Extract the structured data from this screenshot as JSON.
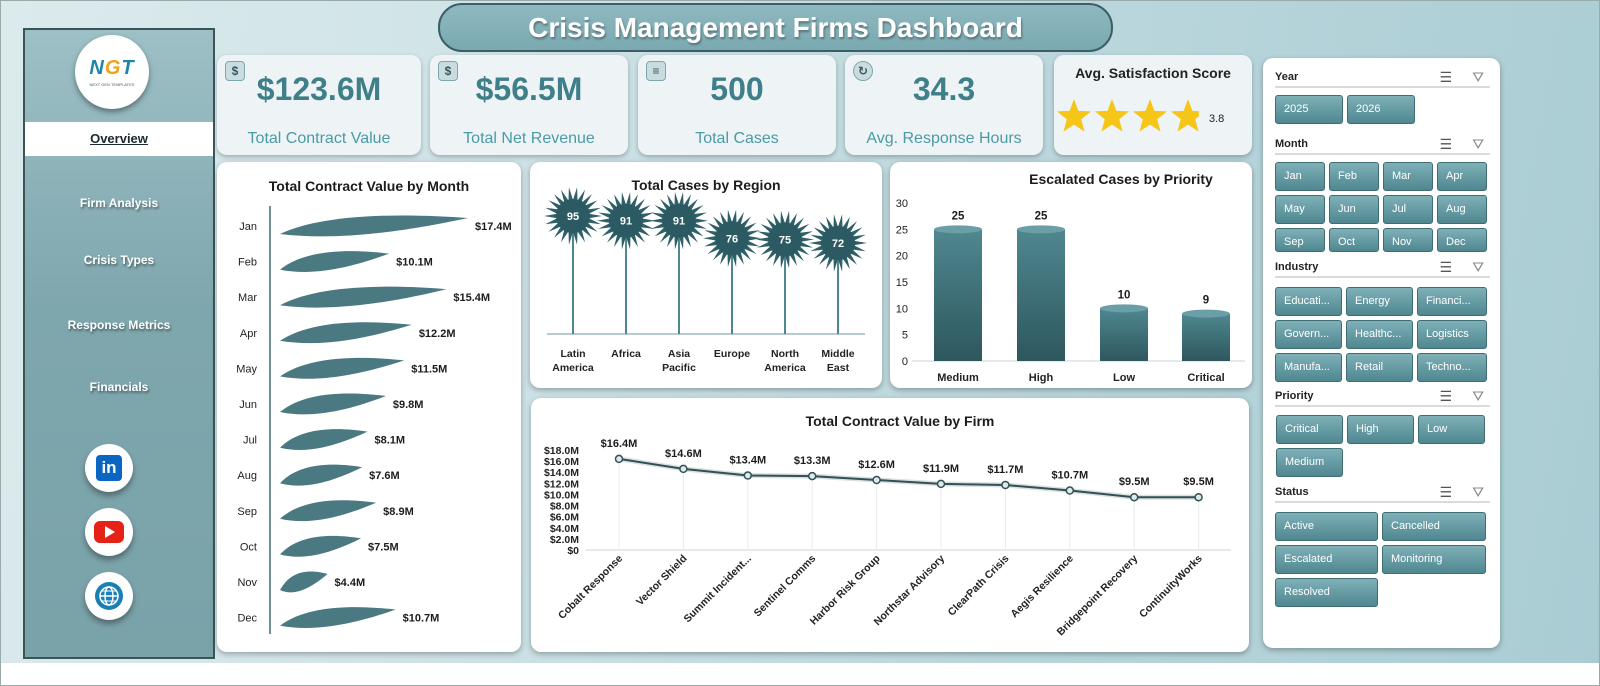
{
  "title": "Crisis Management Firms Dashboard",
  "logo": {
    "text_n": "N",
    "text_g": "G",
    "text_t": "T",
    "subtitle": "NEXT GEN TEMPLATES"
  },
  "sidebar": {
    "items": [
      {
        "label": "Overview",
        "active": true
      },
      {
        "label": "Firm Analysis"
      },
      {
        "label": "Crisis Types"
      },
      {
        "label": "Response Metrics"
      },
      {
        "label": "Financials"
      }
    ],
    "social": {
      "linkedin": "in"
    }
  },
  "kpis": [
    {
      "value": "$123.6M",
      "label": "Total Contract Value",
      "icon": "money-bag-icon"
    },
    {
      "value": "$56.5M",
      "label": "Total Net Revenue",
      "icon": "money-bag-icon"
    },
    {
      "value": "500",
      "label": "Total Cases",
      "icon": "report-icon"
    },
    {
      "value": "34.3",
      "label": "Avg. Response Hours",
      "icon": "refresh-clock-icon"
    }
  ],
  "satisfaction": {
    "title": "Avg. Satisfaction Score",
    "value": "3.8",
    "rating": 3.8,
    "max": 5,
    "star_color": "#f5c518"
  },
  "colors": {
    "accent": "#3f7f89",
    "bar": "#3c6e76",
    "chip": "#5d939b"
  },
  "chart_data": [
    {
      "type": "bar",
      "title": "Total Contract Value by Month",
      "categories": [
        "Jan",
        "Feb",
        "Mar",
        "Apr",
        "May",
        "Jun",
        "Jul",
        "Aug",
        "Sep",
        "Oct",
        "Nov",
        "Dec"
      ],
      "values": [
        17.4,
        10.1,
        15.4,
        12.2,
        11.5,
        9.8,
        8.1,
        7.6,
        8.9,
        7.5,
        4.4,
        10.7
      ],
      "labels": [
        "$17.4M",
        "$10.1M",
        "$15.4M",
        "$12.2M",
        "$11.5M",
        "$9.8M",
        "$8.1M",
        "$7.6M",
        "$8.9M",
        "$7.5M",
        "$4.4M",
        "$10.7M"
      ],
      "orientation": "horizontal"
    },
    {
      "type": "bar",
      "title": "Total Cases by Region",
      "categories": [
        "Latin America",
        "Africa",
        "Asia Pacific",
        "Europe",
        "North America",
        "Middle East"
      ],
      "values": [
        95,
        91,
        91,
        76,
        75,
        72
      ]
    },
    {
      "type": "bar",
      "title": "Escalated Cases by Priority",
      "categories": [
        "Medium",
        "High",
        "Low",
        "Critical"
      ],
      "values": [
        25,
        25,
        10,
        9
      ],
      "ylim": [
        0,
        30
      ],
      "yticks": [
        "0",
        "5",
        "10",
        "15",
        "20",
        "25",
        "30"
      ]
    },
    {
      "type": "line",
      "title": "Total Contract Value by Firm",
      "categories": [
        "Cobalt Response",
        "Vector Shield",
        "Summit Incident...",
        "Sentinel Comms",
        "Harbor Risk Group",
        "Northstar Advisory",
        "ClearPath Crisis",
        "Aegis Resilience",
        "Bridgepoint Recovery",
        "ContinuityWorks"
      ],
      "values": [
        16.4,
        14.6,
        13.4,
        13.3,
        12.6,
        11.9,
        11.7,
        10.7,
        9.5,
        9.5
      ],
      "labels": [
        "$16.4M",
        "$14.6M",
        "$13.4M",
        "$13.3M",
        "$12.6M",
        "$11.9M",
        "$11.7M",
        "$10.7M",
        "$9.5M",
        "$9.5M"
      ],
      "ylim": [
        0,
        18
      ],
      "yticks": [
        "$0",
        "$2.0M",
        "$4.0M",
        "$6.0M",
        "$8.0M",
        "$10.0M",
        "$12.0M",
        "$14.0M",
        "$16.0M",
        "$18.0M"
      ]
    }
  ],
  "slicers": {
    "year": {
      "title": "Year",
      "options": [
        "2025",
        "2026"
      ]
    },
    "month": {
      "title": "Month",
      "options": [
        "Jan",
        "Feb",
        "Mar",
        "Apr",
        "May",
        "Jun",
        "Jul",
        "Aug",
        "Sep",
        "Oct",
        "Nov",
        "Dec"
      ]
    },
    "industry": {
      "title": "Industry",
      "options": [
        "Educati...",
        "Energy",
        "Financi...",
        "Govern...",
        "Healthc...",
        "Logistics",
        "Manufa...",
        "Retail",
        "Techno..."
      ]
    },
    "priority": {
      "title": "Priority",
      "options": [
        "Critical",
        "High",
        "Low",
        "Medium"
      ]
    },
    "status": {
      "title": "Status",
      "options": [
        "Active",
        "Cancelled",
        "Escalated",
        "Monitoring",
        "Resolved"
      ]
    }
  }
}
